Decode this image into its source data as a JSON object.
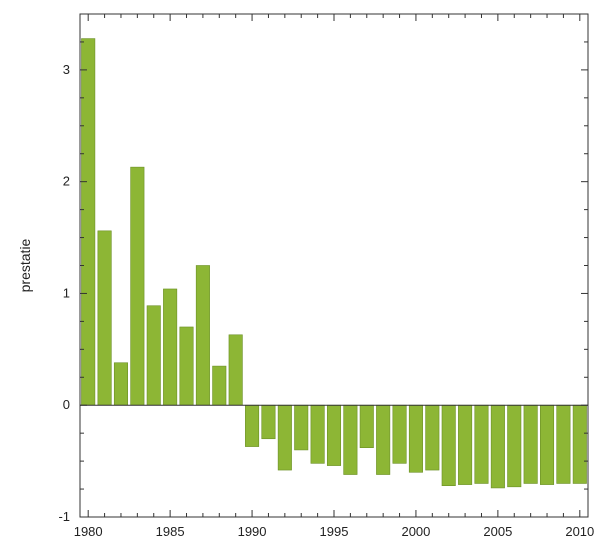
{
  "chart_data": {
    "type": "bar",
    "title": "",
    "xlabel": "",
    "ylabel": "prestatie",
    "x": [
      1980,
      1981,
      1982,
      1983,
      1984,
      1985,
      1986,
      1987,
      1988,
      1989,
      1990,
      1991,
      1992,
      1993,
      1994,
      1995,
      1996,
      1997,
      1998,
      1999,
      2000,
      2001,
      2002,
      2003,
      2004,
      2005,
      2006,
      2007,
      2008,
      2009,
      2010
    ],
    "values": [
      3.28,
      1.56,
      0.38,
      2.13,
      0.89,
      1.04,
      0.7,
      1.25,
      0.35,
      0.63,
      -0.37,
      -0.3,
      -0.58,
      -0.4,
      -0.52,
      -0.54,
      -0.62,
      -0.38,
      -0.62,
      -0.52,
      -0.6,
      -0.58,
      -0.72,
      -0.71,
      -0.7,
      -0.74,
      -0.73,
      -0.7,
      -0.71,
      -0.7,
      -0.7
    ],
    "xlim": [
      1979.5,
      2010.5
    ],
    "ylim": [
      -1,
      3.5
    ],
    "x_ticks": [
      1980,
      1985,
      1990,
      1995,
      2000,
      2005,
      2010
    ],
    "y_ticks": [
      -1,
      0,
      1,
      2,
      3
    ],
    "grid": false,
    "legend": "none",
    "colors": {
      "bar_fill": "#8db635",
      "bar_stroke": "#6a8f24",
      "axis": "#333333"
    }
  }
}
